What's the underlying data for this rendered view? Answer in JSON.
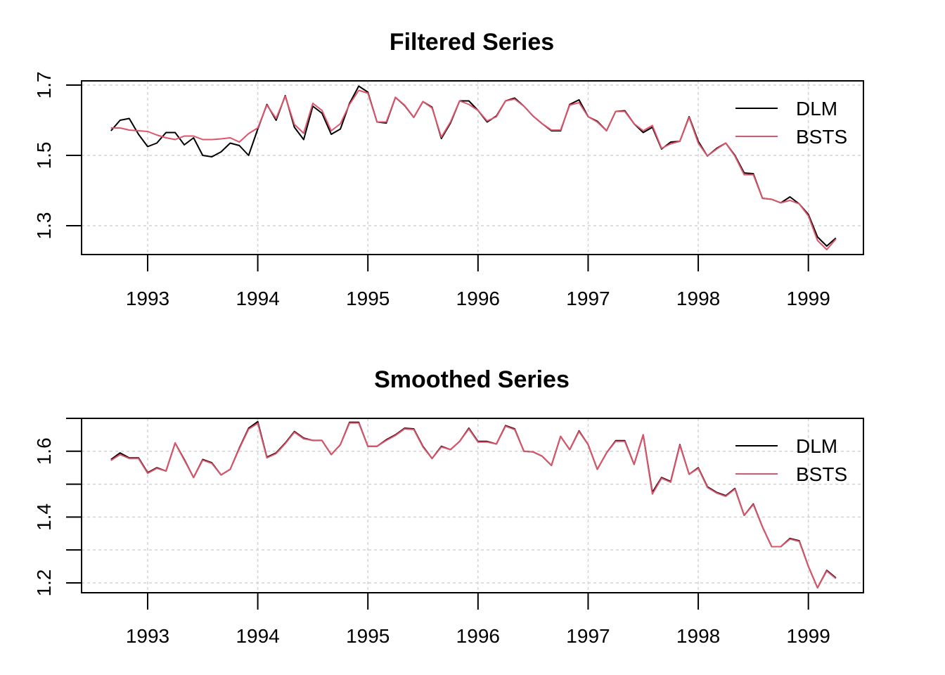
{
  "chart_data": [
    {
      "type": "line",
      "title": "Filtered Series",
      "xlabel": "",
      "ylabel": "",
      "xlim": [
        1992.4,
        1999.5
      ],
      "ylim": [
        1.218,
        1.712
      ],
      "x_ticks": [
        "1993",
        "1994",
        "1995",
        "1996",
        "1997",
        "1998",
        "1999"
      ],
      "y_ticks": [
        "1.3",
        "1.5",
        "1.7"
      ],
      "y_tick_values": [
        1.3,
        1.5,
        1.7
      ],
      "grid": true,
      "legend_position": "top-right",
      "x": [
        1992.667,
        1992.75,
        1992.833,
        1992.917,
        1993.0,
        1993.083,
        1993.167,
        1993.25,
        1993.333,
        1993.417,
        1993.5,
        1993.583,
        1993.667,
        1993.75,
        1993.833,
        1993.917,
        1994.0,
        1994.083,
        1994.167,
        1994.25,
        1994.333,
        1994.417,
        1994.5,
        1994.583,
        1994.667,
        1994.75,
        1994.833,
        1994.917,
        1995.0,
        1995.083,
        1995.167,
        1995.25,
        1995.333,
        1995.417,
        1995.5,
        1995.583,
        1995.667,
        1995.75,
        1995.833,
        1995.917,
        1996.0,
        1996.083,
        1996.167,
        1996.25,
        1996.333,
        1996.417,
        1996.5,
        1996.583,
        1996.667,
        1996.75,
        1996.833,
        1996.917,
        1997.0,
        1997.083,
        1997.167,
        1997.25,
        1997.333,
        1997.417,
        1997.5,
        1997.583,
        1997.667,
        1997.75,
        1997.833,
        1997.917,
        1998.0,
        1998.083,
        1998.167,
        1998.25,
        1998.333,
        1998.417,
        1998.5,
        1998.583,
        1998.667,
        1998.75,
        1998.833,
        1998.917,
        1999.0,
        1999.083,
        1999.167,
        1999.25
      ],
      "series": [
        {
          "name": "DLM",
          "color": "#000000",
          "values": [
            1.57,
            1.6,
            1.605,
            1.56,
            1.525,
            1.535,
            1.565,
            1.565,
            1.53,
            1.55,
            1.5,
            1.496,
            1.51,
            1.535,
            1.528,
            1.5,
            1.575,
            1.645,
            1.6,
            1.67,
            1.58,
            1.545,
            1.64,
            1.62,
            1.56,
            1.575,
            1.648,
            1.697,
            1.68,
            1.595,
            1.592,
            1.665,
            1.642,
            1.608,
            1.653,
            1.637,
            1.548,
            1.592,
            1.655,
            1.655,
            1.628,
            1.595,
            1.612,
            1.655,
            1.663,
            1.64,
            1.612,
            1.59,
            1.57,
            1.57,
            1.645,
            1.658,
            1.61,
            1.597,
            1.57,
            1.625,
            1.627,
            1.59,
            1.565,
            1.58,
            1.518,
            1.538,
            1.54,
            1.61,
            1.54,
            1.498,
            1.52,
            1.535,
            1.5,
            1.45,
            1.448,
            1.378,
            1.375,
            1.365,
            1.382,
            1.362,
            1.332,
            1.268,
            1.242,
            1.265
          ]
        },
        {
          "name": "BSTS",
          "color": "#DF536B",
          "values": [
            1.578,
            1.578,
            1.572,
            1.57,
            1.568,
            1.558,
            1.55,
            1.545,
            1.555,
            1.555,
            1.545,
            1.545,
            1.547,
            1.55,
            1.538,
            1.562,
            1.578,
            1.643,
            1.605,
            1.668,
            1.588,
            1.563,
            1.648,
            1.628,
            1.57,
            1.59,
            1.645,
            1.685,
            1.677,
            1.595,
            1.595,
            1.665,
            1.643,
            1.608,
            1.653,
            1.635,
            1.552,
            1.595,
            1.655,
            1.645,
            1.628,
            1.598,
            1.61,
            1.655,
            1.66,
            1.64,
            1.612,
            1.59,
            1.572,
            1.572,
            1.643,
            1.65,
            1.61,
            1.595,
            1.57,
            1.625,
            1.625,
            1.59,
            1.57,
            1.585,
            1.52,
            1.533,
            1.54,
            1.608,
            1.535,
            1.498,
            1.518,
            1.535,
            1.498,
            1.445,
            1.445,
            1.378,
            1.375,
            1.365,
            1.372,
            1.362,
            1.328,
            1.258,
            1.232,
            1.262
          ]
        }
      ]
    },
    {
      "type": "line",
      "title": "Smoothed Series",
      "xlabel": "",
      "ylabel": "",
      "xlim": [
        1992.4,
        1999.5
      ],
      "ylim": [
        1.17,
        1.7
      ],
      "x_ticks": [
        "1993",
        "1994",
        "1995",
        "1996",
        "1997",
        "1998",
        "1999"
      ],
      "y_ticks": [
        "1.2",
        "1.4",
        "1.6"
      ],
      "y_tick_values": [
        1.2,
        1.4,
        1.6
      ],
      "minor_y_ticks": [
        1.3,
        1.5,
        1.7
      ],
      "grid": true,
      "legend_position": "top-right",
      "x": [
        1992.667,
        1992.75,
        1992.833,
        1992.917,
        1993.0,
        1993.083,
        1993.167,
        1993.25,
        1993.333,
        1993.417,
        1993.5,
        1993.583,
        1993.667,
        1993.75,
        1993.833,
        1993.917,
        1994.0,
        1994.083,
        1994.167,
        1994.25,
        1994.333,
        1994.417,
        1994.5,
        1994.583,
        1994.667,
        1994.75,
        1994.833,
        1994.917,
        1995.0,
        1995.083,
        1995.167,
        1995.25,
        1995.333,
        1995.417,
        1995.5,
        1995.583,
        1995.667,
        1995.75,
        1995.833,
        1995.917,
        1996.0,
        1996.083,
        1996.167,
        1996.25,
        1996.333,
        1996.417,
        1996.5,
        1996.583,
        1996.667,
        1996.75,
        1996.833,
        1996.917,
        1997.0,
        1997.083,
        1997.167,
        1997.25,
        1997.333,
        1997.417,
        1997.5,
        1997.583,
        1997.667,
        1997.75,
        1997.833,
        1997.917,
        1998.0,
        1998.083,
        1998.167,
        1998.25,
        1998.333,
        1998.417,
        1998.5,
        1998.583,
        1998.667,
        1998.75,
        1998.833,
        1998.917,
        1999.0,
        1999.083,
        1999.167,
        1999.25
      ],
      "series": [
        {
          "name": "DLM",
          "color": "#000000",
          "values": [
            1.575,
            1.595,
            1.58,
            1.58,
            1.535,
            1.55,
            1.54,
            1.625,
            1.575,
            1.52,
            1.575,
            1.565,
            1.528,
            1.545,
            1.61,
            1.67,
            1.69,
            1.582,
            1.595,
            1.625,
            1.66,
            1.64,
            1.633,
            1.633,
            1.59,
            1.62,
            1.688,
            1.688,
            1.615,
            1.615,
            1.635,
            1.65,
            1.67,
            1.668,
            1.615,
            1.578,
            1.615,
            1.605,
            1.63,
            1.67,
            1.63,
            1.63,
            1.622,
            1.678,
            1.668,
            1.6,
            1.598,
            1.585,
            1.557,
            1.645,
            1.605,
            1.662,
            1.62,
            1.545,
            1.595,
            1.632,
            1.632,
            1.56,
            1.65,
            1.475,
            1.52,
            1.508,
            1.62,
            1.53,
            1.55,
            1.492,
            1.475,
            1.465,
            1.487,
            1.405,
            1.44,
            1.37,
            1.31,
            1.31,
            1.335,
            1.328,
            1.25,
            1.185,
            1.238,
            1.215
          ]
        },
        {
          "name": "BSTS",
          "color": "#DF536B",
          "values": [
            1.572,
            1.59,
            1.578,
            1.578,
            1.533,
            1.548,
            1.54,
            1.625,
            1.573,
            1.52,
            1.573,
            1.563,
            1.528,
            1.545,
            1.608,
            1.667,
            1.685,
            1.58,
            1.593,
            1.623,
            1.658,
            1.638,
            1.633,
            1.633,
            1.59,
            1.62,
            1.686,
            1.686,
            1.615,
            1.615,
            1.633,
            1.648,
            1.668,
            1.666,
            1.613,
            1.578,
            1.613,
            1.605,
            1.63,
            1.668,
            1.628,
            1.628,
            1.622,
            1.676,
            1.666,
            1.6,
            1.598,
            1.585,
            1.557,
            1.645,
            1.605,
            1.66,
            1.62,
            1.545,
            1.595,
            1.63,
            1.63,
            1.56,
            1.65,
            1.47,
            1.518,
            1.506,
            1.618,
            1.53,
            1.548,
            1.49,
            1.473,
            1.463,
            1.485,
            1.405,
            1.438,
            1.37,
            1.31,
            1.31,
            1.333,
            1.326,
            1.25,
            1.185,
            1.236,
            1.213
          ]
        }
      ]
    }
  ]
}
